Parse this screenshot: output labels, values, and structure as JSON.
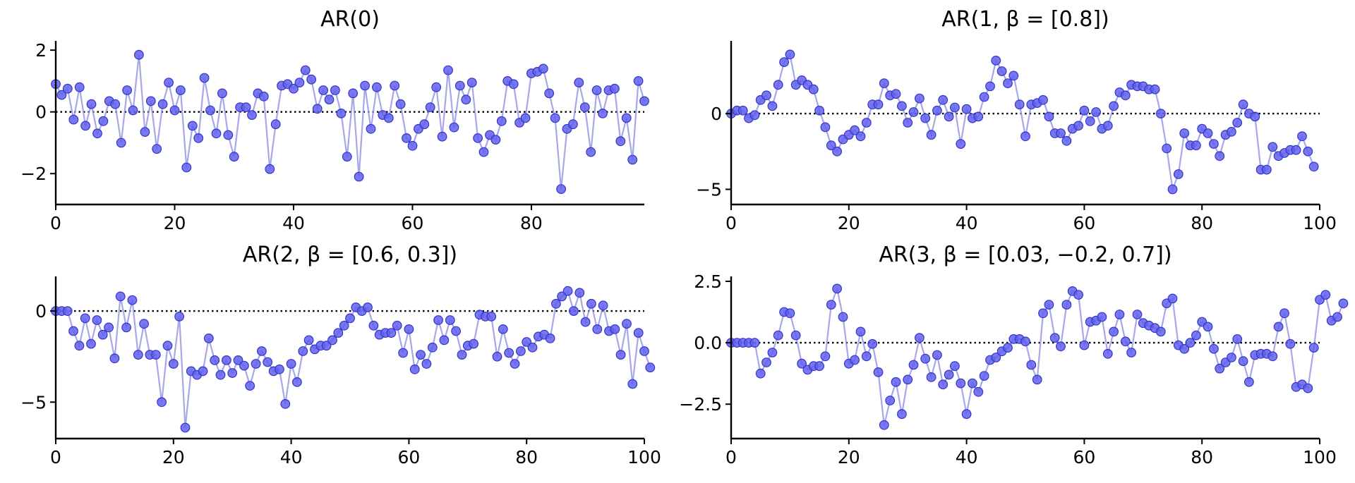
{
  "chart_data": [
    {
      "type": "line",
      "title": "AR(0)",
      "xlim": [
        0,
        99
      ],
      "ylim": [
        -3.0,
        2.3
      ],
      "xticks": [
        0,
        20,
        40,
        60,
        80
      ],
      "yticks": [
        -2,
        0,
        2
      ],
      "ytick_labels": [
        "−2",
        "0",
        "2"
      ],
      "series": [
        {
          "x0": 0,
          "values": [
            0.9,
            0.55,
            0.75,
            -0.25,
            0.8,
            -0.45,
            0.25,
            -0.7,
            -0.3,
            0.35,
            0.25,
            -1.0,
            0.7,
            0.05,
            1.85,
            -0.65,
            0.35,
            -1.2,
            0.25,
            0.95,
            0.05,
            0.7,
            -1.8,
            -0.45,
            -0.85,
            1.1,
            0.05,
            -0.7,
            0.6,
            -0.75,
            -1.45,
            0.15,
            0.15,
            -0.1,
            0.6,
            0.5,
            -1.85,
            -0.4,
            0.85,
            0.9,
            0.75,
            0.95,
            1.35,
            1.05,
            0.1,
            0.7,
            0.4,
            0.7,
            -0.05,
            -1.45,
            0.6,
            -2.1,
            0.85,
            -0.55,
            0.8,
            -0.1,
            -0.2,
            0.85,
            0.25,
            -0.85,
            -1.1,
            -0.55,
            -0.4,
            0.15,
            0.8,
            -0.8,
            1.35,
            -0.5,
            0.85,
            0.4,
            0.95,
            -0.85,
            -1.3,
            -0.75,
            -0.9,
            -0.3,
            1.0,
            0.9,
            -0.35,
            -0.2,
            1.25,
            1.3,
            1.4,
            0.6,
            -0.2,
            -2.5,
            -0.55,
            -0.4,
            0.95,
            0.15,
            -1.3,
            0.7,
            -0.05,
            0.7,
            0.75,
            -0.95,
            -0.2,
            -1.55,
            1.0,
            0.35
          ]
        }
      ]
    },
    {
      "type": "line",
      "title": "AR(1, β = [0.8])",
      "xlim": [
        0,
        100
      ],
      "ylim": [
        -6.0,
        4.8
      ],
      "xticks": [
        0,
        20,
        40,
        60,
        80,
        100
      ],
      "yticks": [
        -5,
        0
      ],
      "ytick_labels": [
        "−5",
        "0"
      ],
      "series": [
        {
          "x0": 0,
          "values": [
            0.0,
            0.2,
            0.2,
            -0.3,
            -0.1,
            0.9,
            1.2,
            0.5,
            1.9,
            3.4,
            3.9,
            1.9,
            2.2,
            1.9,
            1.6,
            0.2,
            -0.9,
            -2.1,
            -2.5,
            -1.7,
            -1.4,
            -1.1,
            -1.5,
            -0.6,
            0.6,
            0.6,
            2.0,
            1.2,
            1.3,
            0.5,
            -0.6,
            0.1,
            1.0,
            -0.3,
            -1.4,
            0.2,
            0.9,
            -0.2,
            0.4,
            -2.0,
            0.3,
            -0.3,
            -0.2,
            1.1,
            1.8,
            3.5,
            2.8,
            2.0,
            2.5,
            0.6,
            -1.5,
            0.6,
            0.7,
            0.9,
            -0.2,
            -1.3,
            -1.3,
            -1.8,
            -1.0,
            -0.8,
            0.2,
            -0.5,
            0.1,
            -1.0,
            -0.8,
            0.5,
            1.4,
            1.2,
            1.9,
            1.8,
            1.8,
            1.6,
            1.6,
            0.0,
            -2.3,
            -5.0,
            -4.0,
            -1.3,
            -2.1,
            -2.1,
            -1.0,
            -1.3,
            -2.0,
            -2.8,
            -1.4,
            -1.2,
            -0.6,
            0.6,
            0.0,
            -0.2,
            -3.7,
            -3.7,
            -2.2,
            -2.8,
            -2.6,
            -2.4,
            -2.4,
            -1.5,
            -2.5,
            -3.5
          ]
        }
      ]
    },
    {
      "type": "line",
      "title": "AR(2, β = [0.6, 0.3])",
      "xlim": [
        0,
        100
      ],
      "ylim": [
        -7.0,
        1.9
      ],
      "xticks": [
        0,
        20,
        40,
        60,
        80,
        100
      ],
      "yticks": [
        -5,
        0
      ],
      "ytick_labels": [
        "−5",
        "0"
      ],
      "series": [
        {
          "x0": 0,
          "values": [
            0.0,
            0.0,
            0.0,
            -1.1,
            -1.9,
            -0.4,
            -1.8,
            -0.5,
            -1.3,
            -0.9,
            -2.6,
            0.8,
            -0.9,
            0.6,
            -2.4,
            -0.7,
            -2.4,
            -2.4,
            -5.0,
            -1.9,
            -2.9,
            -0.3,
            -6.4,
            -3.3,
            -3.5,
            -3.3,
            -1.5,
            -2.7,
            -3.5,
            -2.7,
            -3.4,
            -2.7,
            -3.0,
            -4.1,
            -2.9,
            -2.2,
            -2.8,
            -3.3,
            -3.2,
            -5.1,
            -2.9,
            -3.9,
            -2.2,
            -1.6,
            -2.1,
            -1.9,
            -1.9,
            -1.6,
            -1.2,
            -0.8,
            -0.4,
            0.2,
            0.0,
            0.2,
            -0.8,
            -1.3,
            -1.2,
            -1.2,
            -0.8,
            -2.3,
            -1.0,
            -3.2,
            -2.4,
            -2.9,
            -2.0,
            -0.5,
            -1.6,
            -0.5,
            -1.1,
            -2.4,
            -1.9,
            -1.8,
            -0.2,
            -0.3,
            -0.3,
            -2.5,
            -1.0,
            -2.3,
            -2.9,
            -2.2,
            -1.7,
            -2.0,
            -1.4,
            -1.3,
            -1.5,
            0.4,
            0.8,
            1.1,
            0.0,
            1.0,
            -0.6,
            0.4,
            -1.0,
            0.3,
            -1.1,
            -1.0,
            -2.4,
            -0.7,
            -4.0,
            -1.2,
            -2.2,
            -3.1
          ]
        }
      ]
    },
    {
      "type": "line",
      "title": "AR(3, β = [0.03, −0.2, 0.7])",
      "xlim": [
        0,
        100
      ],
      "ylim": [
        -3.9,
        2.7
      ],
      "xticks": [
        0,
        20,
        40,
        60,
        80,
        100
      ],
      "yticks": [
        -2.5,
        0.0,
        2.5
      ],
      "ytick_labels": [
        "−2.5",
        "0.0",
        "2.5"
      ],
      "series": [
        {
          "x0": 0,
          "values": [
            0.0,
            0.0,
            0.0,
            0.0,
            0.0,
            -1.25,
            -0.8,
            -0.4,
            0.3,
            1.25,
            1.2,
            0.3,
            -0.85,
            -1.1,
            -0.95,
            -0.95,
            -0.55,
            1.55,
            2.2,
            1.05,
            -0.85,
            -0.7,
            0.45,
            -0.55,
            -0.05,
            -1.2,
            -3.35,
            -2.35,
            -1.6,
            -2.9,
            -1.5,
            -0.9,
            0.2,
            -0.65,
            -1.4,
            -0.5,
            -1.7,
            -1.3,
            -0.95,
            -1.65,
            -2.9,
            -1.65,
            -2.0,
            -1.35,
            -0.7,
            -0.6,
            -0.35,
            -0.2,
            0.15,
            0.15,
            0.05,
            -0.9,
            -1.5,
            1.2,
            1.55,
            0.2,
            -0.15,
            1.55,
            2.1,
            1.95,
            -0.1,
            0.85,
            0.9,
            1.05,
            -0.45,
            0.45,
            1.15,
            0.05,
            -0.4,
            1.15,
            0.8,
            0.7,
            0.6,
            0.45,
            1.6,
            1.8,
            -0.1,
            -0.25,
            0.0,
            0.3,
            0.85,
            0.65,
            -0.25,
            -1.05,
            -0.8,
            -0.6,
            0.15,
            -0.75,
            -1.6,
            -0.5,
            -0.45,
            -0.45,
            -0.55,
            0.65,
            1.2,
            -0.05,
            -1.8,
            -1.7,
            -1.85,
            -0.2,
            1.75,
            1.95,
            0.9,
            1.05,
            1.6
          ]
        }
      ]
    }
  ]
}
